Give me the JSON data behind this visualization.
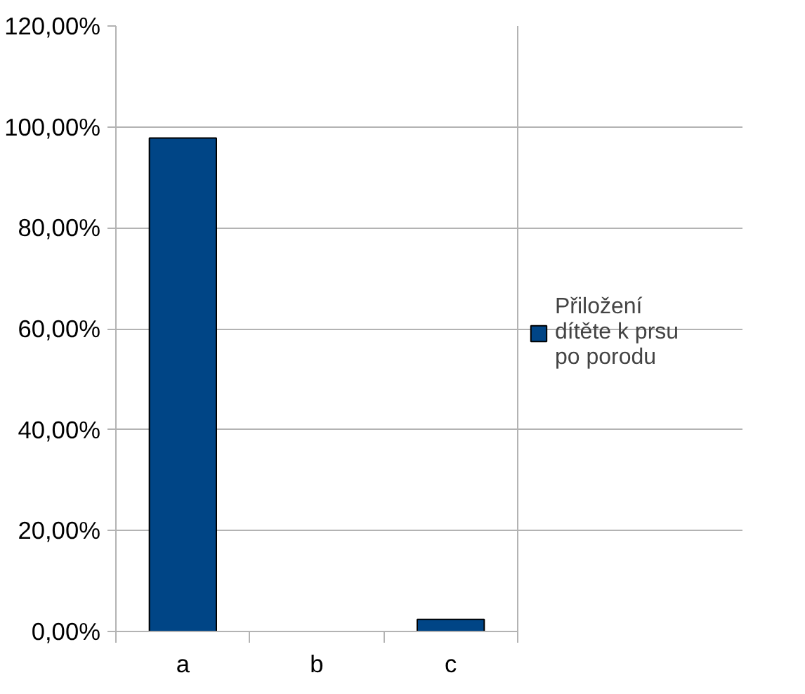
{
  "chart_data": {
    "type": "bar",
    "categories": [
      "a",
      "b",
      "c"
    ],
    "series": [
      {
        "name": "Přiložení dítěte k prsu po porodu",
        "color": "#004586",
        "values": [
          97.8,
          0,
          2.4
        ]
      }
    ],
    "ylim": [
      0,
      120
    ],
    "yticks": [
      {
        "value": 0,
        "label": "0,00%"
      },
      {
        "value": 20,
        "label": "20,00%"
      },
      {
        "value": 40,
        "label": "40,00%"
      },
      {
        "value": 60,
        "label": "60,00%"
      },
      {
        "value": 80,
        "label": "80,00%"
      },
      {
        "value": 100,
        "label": "100,00%"
      },
      {
        "value": 120,
        "label": "120,00%"
      }
    ],
    "grid": "y",
    "legend": "right"
  }
}
